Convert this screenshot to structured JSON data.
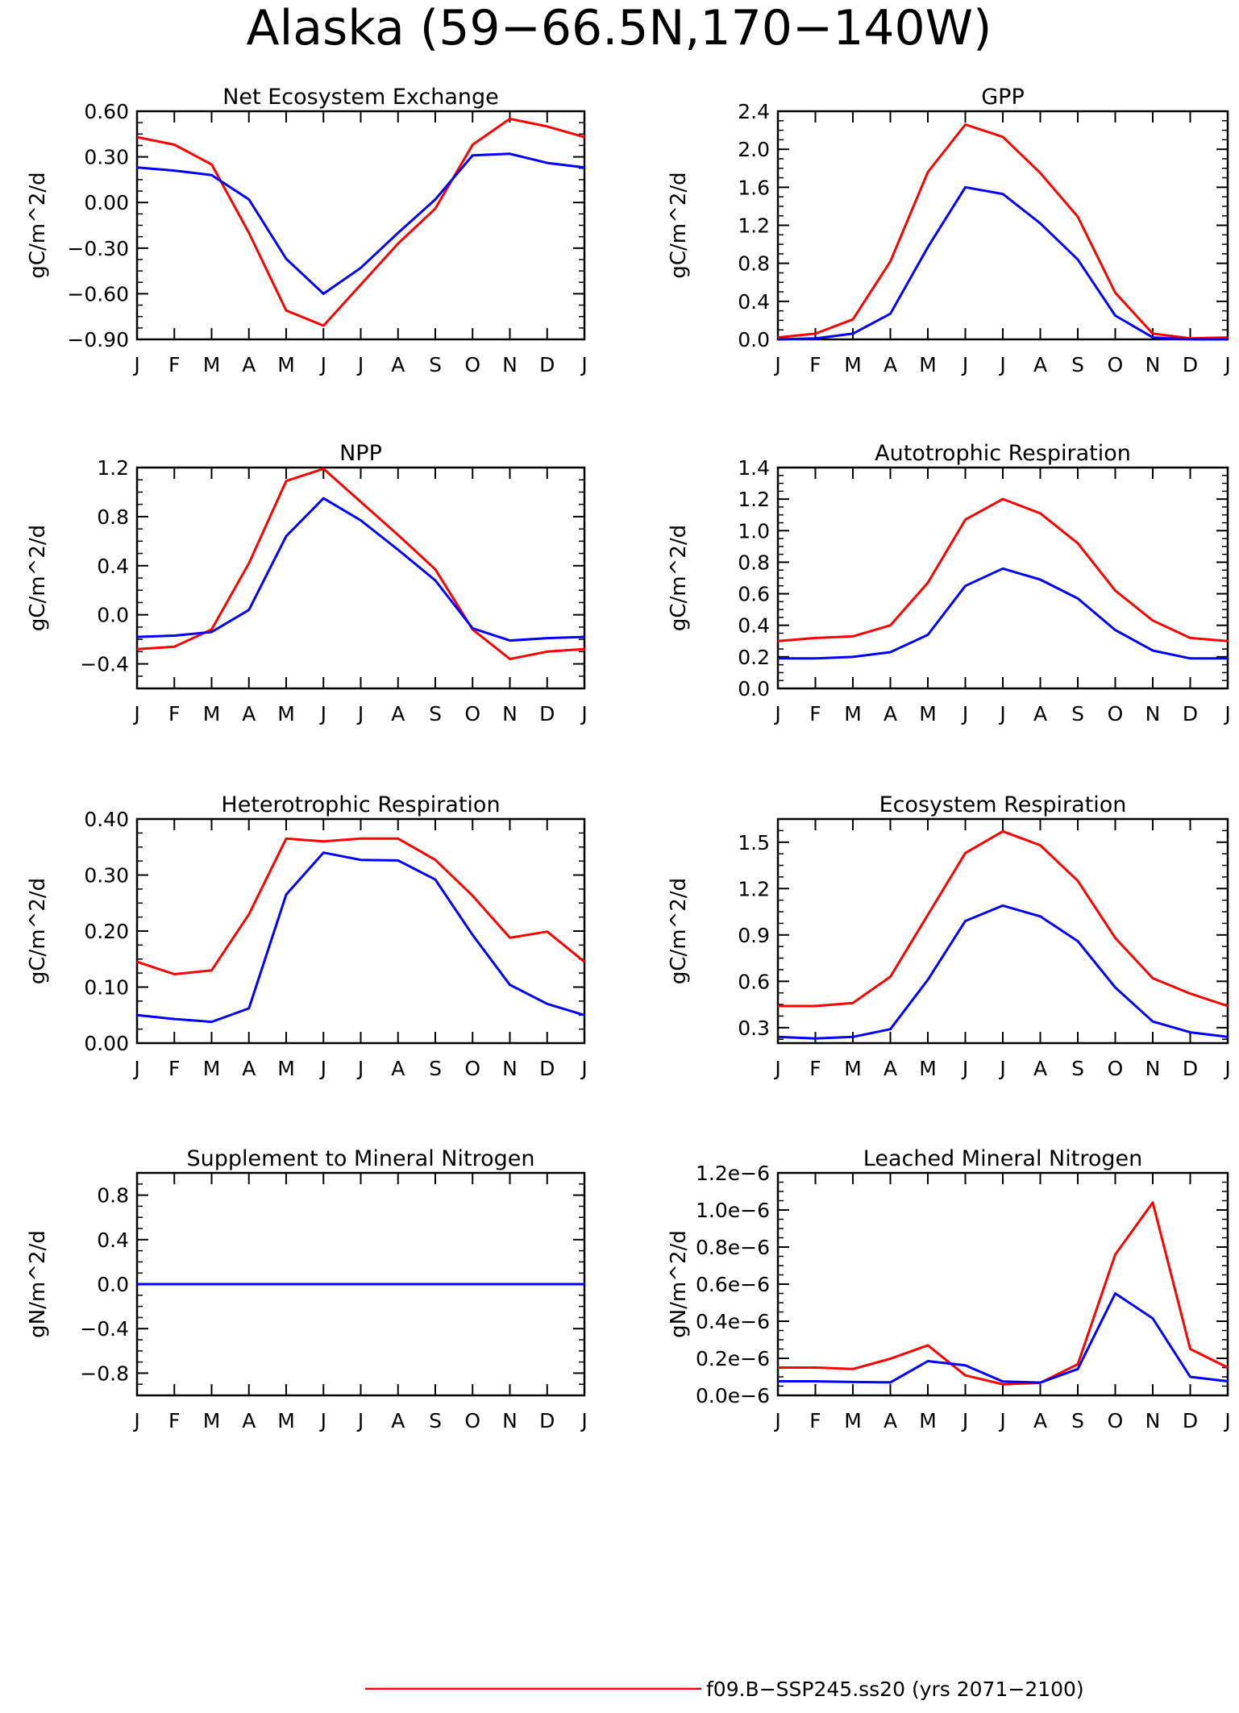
{
  "figure": {
    "title": "Alaska (59−66.5N,170−140W)",
    "legend": [
      {
        "label": "f09.B−SSP245.ss20 (yrs 2071−2100)",
        "color": "#ff0000"
      }
    ]
  },
  "chart_data": [
    {
      "type": "line",
      "title": "Net Ecosystem Exchange",
      "ylabel": "gC/m^2/d",
      "ylim": [
        -0.9,
        0.6
      ],
      "yticks": [
        -0.9,
        -0.6,
        -0.3,
        0.0,
        0.3,
        0.6
      ],
      "ytick_labels": [
        "−0.90",
        "−0.60",
        "−0.30",
        "0.00",
        "0.30",
        "0.60"
      ],
      "categories": [
        "J",
        "F",
        "M",
        "A",
        "M",
        "J",
        "J",
        "A",
        "S",
        "O",
        "N",
        "D",
        "J"
      ],
      "series": [
        {
          "color": "#ff0000",
          "values": [
            0.43,
            0.38,
            0.25,
            -0.2,
            -0.71,
            -0.81,
            -0.54,
            -0.27,
            -0.04,
            0.38,
            0.55,
            0.5,
            0.43
          ]
        },
        {
          "color": "#0000ff",
          "values": [
            0.23,
            0.21,
            0.18,
            0.02,
            -0.37,
            -0.6,
            -0.43,
            -0.2,
            0.02,
            0.31,
            0.32,
            0.26,
            0.23
          ]
        }
      ]
    },
    {
      "type": "line",
      "title": "GPP",
      "ylabel": "gC/m^2/d",
      "ylim": [
        0,
        2.4
      ],
      "yticks": [
        0,
        0.4,
        0.8,
        1.2,
        1.6,
        2.0,
        2.4
      ],
      "ytick_labels": [
        "0.0",
        "0.4",
        "0.8",
        "1.2",
        "1.6",
        "2.0",
        "2.4"
      ],
      "categories": [
        "J",
        "F",
        "M",
        "A",
        "M",
        "J",
        "J",
        "A",
        "S",
        "O",
        "N",
        "D",
        "J"
      ],
      "series": [
        {
          "color": "#ff0000",
          "values": [
            0.02,
            0.06,
            0.21,
            0.82,
            1.76,
            2.26,
            2.13,
            1.75,
            1.29,
            0.49,
            0.06,
            0.01,
            0.02
          ]
        },
        {
          "color": "#0000ff",
          "values": [
            0.0,
            0.01,
            0.06,
            0.27,
            0.97,
            1.6,
            1.53,
            1.22,
            0.84,
            0.25,
            0.02,
            0.0,
            0.0
          ]
        }
      ]
    },
    {
      "type": "line",
      "title": "NPP",
      "ylabel": "gC/m^2/d",
      "ylim": [
        -0.6,
        1.2
      ],
      "yticks": [
        -0.4,
        0.0,
        0.4,
        0.8,
        1.2
      ],
      "ytick_labels": [
        "−0.4",
        "0.0",
        "0.4",
        "0.8",
        "1.2"
      ],
      "categories": [
        "J",
        "F",
        "M",
        "A",
        "M",
        "J",
        "J",
        "A",
        "S",
        "O",
        "N",
        "D",
        "J"
      ],
      "series": [
        {
          "color": "#ff0000",
          "values": [
            -0.28,
            -0.26,
            -0.12,
            0.42,
            1.09,
            1.19,
            0.92,
            0.65,
            0.37,
            -0.12,
            -0.36,
            -0.3,
            -0.28
          ]
        },
        {
          "color": "#0000ff",
          "values": [
            -0.18,
            -0.17,
            -0.14,
            0.04,
            0.64,
            0.95,
            0.77,
            0.53,
            0.28,
            -0.11,
            -0.21,
            -0.19,
            -0.18
          ]
        }
      ]
    },
    {
      "type": "line",
      "title": "Autotrophic Respiration",
      "ylabel": "gC/m^2/d",
      "ylim": [
        0,
        1.4
      ],
      "yticks": [
        0,
        0.2,
        0.4,
        0.6,
        0.8,
        1.0,
        1.2,
        1.4
      ],
      "ytick_labels": [
        "0.0",
        "0.2",
        "0.4",
        "0.6",
        "0.8",
        "1.0",
        "1.2",
        "1.4"
      ],
      "categories": [
        "J",
        "F",
        "M",
        "A",
        "M",
        "J",
        "J",
        "A",
        "S",
        "O",
        "N",
        "D",
        "J"
      ],
      "series": [
        {
          "color": "#ff0000",
          "values": [
            0.3,
            0.32,
            0.33,
            0.4,
            0.67,
            1.07,
            1.2,
            1.11,
            0.92,
            0.62,
            0.43,
            0.32,
            0.3
          ]
        },
        {
          "color": "#0000ff",
          "values": [
            0.19,
            0.19,
            0.2,
            0.23,
            0.34,
            0.65,
            0.76,
            0.69,
            0.57,
            0.37,
            0.24,
            0.19,
            0.19
          ]
        }
      ]
    },
    {
      "type": "line",
      "title": "Heterotrophic Respiration",
      "ylabel": "gC/m^2/d",
      "ylim": [
        0,
        0.4
      ],
      "yticks": [
        0,
        0.1,
        0.2,
        0.3,
        0.4
      ],
      "ytick_labels": [
        "0.00",
        "0.10",
        "0.20",
        "0.30",
        "0.40"
      ],
      "categories": [
        "J",
        "F",
        "M",
        "A",
        "M",
        "J",
        "J",
        "A",
        "S",
        "O",
        "N",
        "D",
        "J"
      ],
      "series": [
        {
          "color": "#ff0000",
          "values": [
            0.145,
            0.123,
            0.13,
            0.23,
            0.365,
            0.36,
            0.365,
            0.365,
            0.327,
            0.263,
            0.188,
            0.199,
            0.145
          ]
        },
        {
          "color": "#0000ff",
          "values": [
            0.05,
            0.043,
            0.038,
            0.062,
            0.265,
            0.34,
            0.327,
            0.326,
            0.292,
            0.193,
            0.104,
            0.07,
            0.05
          ]
        }
      ]
    },
    {
      "type": "line",
      "title": "Ecosystem Respiration",
      "ylabel": "gC/m^2/d",
      "ylim": [
        0.2,
        1.65
      ],
      "yticks": [
        0.3,
        0.6,
        0.9,
        1.2,
        1.5
      ],
      "ytick_labels": [
        "0.3",
        "0.6",
        "0.9",
        "1.2",
        "1.5"
      ],
      "categories": [
        "J",
        "F",
        "M",
        "A",
        "M",
        "J",
        "J",
        "A",
        "S",
        "O",
        "N",
        "D",
        "J"
      ],
      "series": [
        {
          "color": "#ff0000",
          "values": [
            0.44,
            0.44,
            0.46,
            0.63,
            1.03,
            1.43,
            1.57,
            1.48,
            1.25,
            0.88,
            0.62,
            0.52,
            0.44
          ]
        },
        {
          "color": "#0000ff",
          "values": [
            0.24,
            0.23,
            0.24,
            0.29,
            0.61,
            0.99,
            1.09,
            1.02,
            0.86,
            0.56,
            0.34,
            0.27,
            0.24
          ]
        }
      ]
    },
    {
      "type": "line",
      "title": "Supplement to Mineral Nitrogen",
      "ylabel": "gN/m^2/d",
      "ylim": [
        -1.0,
        1.0
      ],
      "yticks": [
        -0.8,
        -0.4,
        0.0,
        0.4,
        0.8
      ],
      "ytick_labels": [
        "−0.8",
        "−0.4",
        "0.0",
        "0.4",
        "0.8"
      ],
      "categories": [
        "J",
        "F",
        "M",
        "A",
        "M",
        "J",
        "J",
        "A",
        "S",
        "O",
        "N",
        "D",
        "J"
      ],
      "series": [
        {
          "color": "#ff0000",
          "values": [
            0,
            0,
            0,
            0,
            0,
            0,
            0,
            0,
            0,
            0,
            0,
            0,
            0
          ]
        },
        {
          "color": "#0000ff",
          "values": [
            0,
            0,
            0,
            0,
            0,
            0,
            0,
            0,
            0,
            0,
            0,
            0,
            0
          ]
        }
      ]
    },
    {
      "type": "line",
      "title": "Leached Mineral Nitrogen",
      "ylabel": "gN/m^2/d",
      "ylim": [
        0,
        1.2e-06
      ],
      "yticks": [
        0,
        2e-07,
        4e-07,
        6e-07,
        8e-07,
        1e-06,
        1.2e-06
      ],
      "ytick_labels": [
        "0.0e−6",
        "0.2e−6",
        "0.4e−6",
        "0.6e−6",
        "0.8e−6",
        "1.0e−6",
        "1.2e−6"
      ],
      "categories": [
        "J",
        "F",
        "M",
        "A",
        "M",
        "J",
        "J",
        "A",
        "S",
        "O",
        "N",
        "D",
        "J"
      ],
      "series": [
        {
          "color": "#ff0000",
          "values": [
            1.5e-07,
            1.5e-07,
            1.42e-07,
            1.98e-07,
            2.7e-07,
            1.08e-07,
            6e-08,
            6.8e-08,
            1.68e-07,
            7.6e-07,
            1.04e-06,
            2.5e-07,
            1.5e-07
          ]
        },
        {
          "color": "#0000ff",
          "values": [
            7.6e-08,
            7.6e-08,
            7.2e-08,
            7e-08,
            1.85e-07,
            1.62e-07,
            7.5e-08,
            6.9e-08,
            1.42e-07,
            5.5e-07,
            4.15e-07,
            1e-07,
            7.6e-08
          ]
        }
      ]
    }
  ]
}
